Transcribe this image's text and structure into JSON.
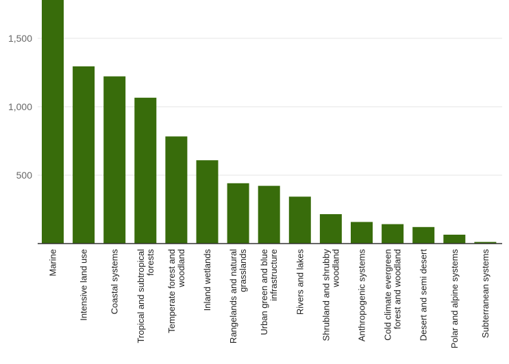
{
  "chart_data": {
    "type": "bar",
    "title": "",
    "xlabel": "",
    "ylabel": "",
    "ylim": [
      0,
      1800
    ],
    "yticks": [
      {
        "value": 500,
        "label": "500"
      },
      {
        "value": 1000,
        "label": "1,000"
      },
      {
        "value": 1500,
        "label": "1,500"
      }
    ],
    "grid": true,
    "legend": "none",
    "bar_color": "#386c0b",
    "categories": [
      [
        "Marine"
      ],
      [
        "Intensive land use"
      ],
      [
        "Coastal systems"
      ],
      [
        "Tropical and subtropical",
        "forests"
      ],
      [
        "Temperate forest and",
        "woodland"
      ],
      [
        "Inland wetlands"
      ],
      [
        "Rangelands and natural",
        "grasslands"
      ],
      [
        "Urban green and blue",
        "infrastructure"
      ],
      [
        "Rivers and lakes"
      ],
      [
        "Shrubland and shrubby",
        "woodland"
      ],
      [
        "Anthropogenic systems"
      ],
      [
        "Cold climate evergreen",
        "forest and woodland"
      ],
      [
        "Desert and semi desert"
      ],
      [
        "Polar and alpine systems"
      ],
      [
        "Subterranean systems"
      ]
    ],
    "values": [
      1800,
      1295,
      1222,
      1066,
      783,
      609,
      441,
      422,
      343,
      215,
      158,
      142,
      121,
      65,
      12
    ]
  }
}
